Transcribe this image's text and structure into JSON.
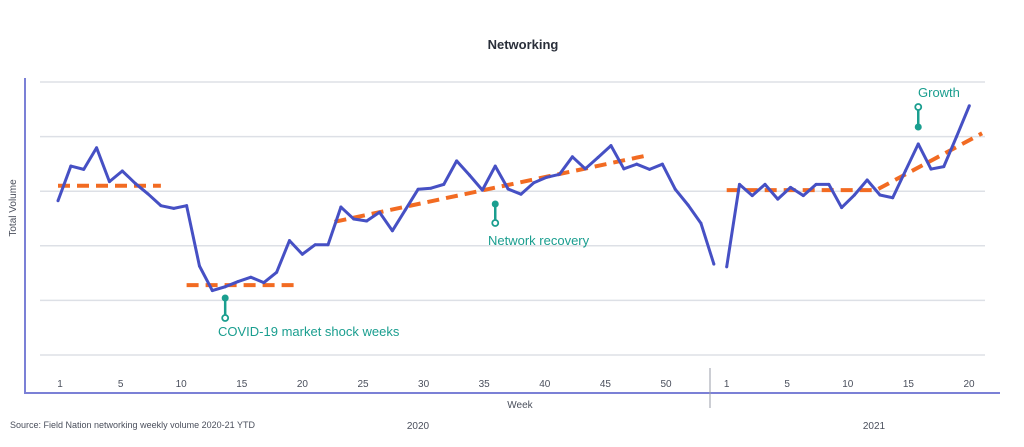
{
  "chart_data": {
    "type": "line",
    "title": "Networking",
    "ylabel": "Total  Volume",
    "xlabel": "Week",
    "source": "Source: Field Nation networking weekly volume 2020-21 YTD",
    "ylim": [
      0,
      100
    ],
    "y_tick_labels_shown": false,
    "grid": true,
    "colors": {
      "series": "#4650c4",
      "trend": "#f26b22",
      "annotation": "#1a9e8f",
      "axis": "#7b80d6",
      "grid": "#dde0e6"
    },
    "groups": [
      {
        "label": "2020",
        "tick_labels": [
          "1",
          "5",
          "10",
          "15",
          "20",
          "25",
          "30",
          "35",
          "40",
          "45",
          "50"
        ]
      },
      {
        "label": "2021",
        "tick_labels": [
          "1",
          "5",
          "10",
          "15",
          "20"
        ]
      }
    ],
    "series": [
      {
        "group": "2020",
        "weeks_from": 1,
        "values": [
          56.5,
          69.2,
          68.0,
          75.9,
          63.5,
          67.4,
          62.9,
          59.0,
          54.7,
          53.7,
          54.7,
          32.6,
          23.6,
          25.0,
          26.9,
          28.5,
          26.5,
          30.3,
          41.9,
          36.9,
          40.4,
          40.4,
          54.2,
          49.8,
          49.1,
          52.3,
          45.5,
          53.1,
          60.7,
          61.1,
          62.5,
          71.1,
          65.9,
          60.4,
          69.2,
          60.8,
          58.9,
          63.1,
          65.1,
          66.2,
          72.6,
          68.2,
          72.4,
          76.7,
          68.2,
          69.9,
          68.0,
          69.9,
          60.7,
          54.9,
          48.2,
          33.3
        ]
      },
      {
        "group": "2021",
        "weeks_from": 1,
        "values": [
          32.3,
          62.5,
          58.4,
          62.5,
          57.1,
          61.4,
          58.4,
          62.5,
          62.5,
          54.0,
          58.6,
          64.1,
          58.6,
          57.6,
          67.5,
          77.3,
          68.1,
          69.0,
          80.0,
          91.3
        ]
      }
    ],
    "trend_lines": [
      {
        "group": "2020",
        "points": [
          [
            1,
            62
          ],
          [
            9,
            62
          ]
        ]
      },
      {
        "group": "2020",
        "points": [
          [
            11,
            25.6
          ],
          [
            19.5,
            25.6
          ]
        ]
      },
      {
        "group": "2020",
        "points": [
          [
            22.5,
            48.8
          ],
          [
            47,
            73.3
          ]
        ]
      },
      {
        "group": "2021",
        "points": [
          [
            1,
            60.4
          ],
          [
            12.7,
            60.4
          ],
          [
            21,
            81.2
          ]
        ]
      }
    ],
    "annotations": [
      {
        "text": "COVID-19 market shock weeks",
        "group": "2020",
        "week": 14,
        "pin": "down"
      },
      {
        "text": "Network recovery",
        "group": "2020",
        "week": 35,
        "pin": "down"
      },
      {
        "text": "Growth",
        "group": "2021",
        "week": 16,
        "pin": "up"
      }
    ]
  }
}
